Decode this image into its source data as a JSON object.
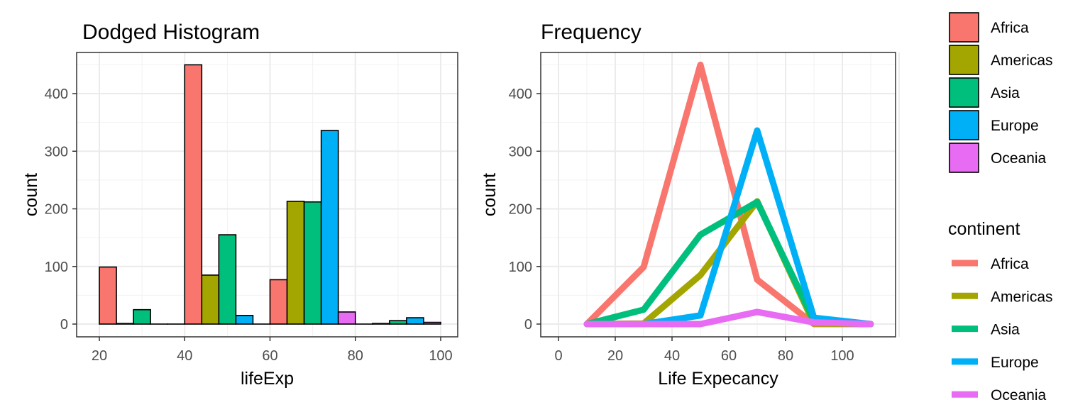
{
  "chart_data": [
    {
      "type": "bar",
      "title": "Dodged Histogram",
      "xlabel": "lifeExp",
      "ylabel": "count",
      "xlim": [
        20,
        100
      ],
      "ylim": [
        0,
        450
      ],
      "xticks": [
        20,
        40,
        60,
        80,
        100
      ],
      "yticks": [
        0,
        100,
        200,
        300,
        400
      ],
      "grid": true,
      "bin_centers": [
        30,
        50,
        70,
        90
      ],
      "bin_width": 20,
      "series": [
        {
          "name": "Africa",
          "color": "#F8766D",
          "values": [
            99,
            450,
            77,
            0
          ]
        },
        {
          "name": "Americas",
          "color": "#A3A500",
          "values": [
            1,
            85,
            213,
            1
          ]
        },
        {
          "name": "Asia",
          "color": "#00BF7D",
          "values": [
            25,
            155,
            212,
            6
          ]
        },
        {
          "name": "Europe",
          "color": "#00B0F6",
          "values": [
            0,
            15,
            336,
            11
          ]
        },
        {
          "name": "Oceania",
          "color": "#E76BF3",
          "values": [
            0,
            0,
            21,
            3
          ]
        }
      ]
    },
    {
      "type": "line",
      "title": "Frequency",
      "xlabel": "Life Expecancy",
      "ylabel": "count",
      "xlim": [
        0,
        120
      ],
      "ylim": [
        0,
        450
      ],
      "xticks": [
        0,
        20,
        40,
        60,
        80,
        100
      ],
      "yticks": [
        0,
        100,
        200,
        300,
        400
      ],
      "grid": true,
      "x": [
        10,
        30,
        50,
        70,
        90,
        110
      ],
      "series": [
        {
          "name": "Africa",
          "color": "#F8766D",
          "values": [
            0,
            99,
            450,
            77,
            0,
            0
          ]
        },
        {
          "name": "Americas",
          "color": "#A3A500",
          "values": [
            0,
            1,
            85,
            213,
            1,
            0
          ]
        },
        {
          "name": "Asia",
          "color": "#00BF7D",
          "values": [
            0,
            25,
            155,
            212,
            6,
            0
          ]
        },
        {
          "name": "Europe",
          "color": "#00B0F6",
          "values": [
            0,
            0,
            15,
            336,
            11,
            0
          ]
        },
        {
          "name": "Oceania",
          "color": "#E76BF3",
          "values": [
            0,
            0,
            0,
            21,
            3,
            0
          ]
        }
      ]
    }
  ],
  "legends": {
    "fill": {
      "title": "",
      "placement": "top-right",
      "items": [
        "Africa",
        "Americas",
        "Asia",
        "Europe",
        "Oceania"
      ]
    },
    "color": {
      "title": "continent",
      "placement": "right",
      "items": [
        "Africa",
        "Americas",
        "Asia",
        "Europe",
        "Oceania"
      ]
    }
  }
}
